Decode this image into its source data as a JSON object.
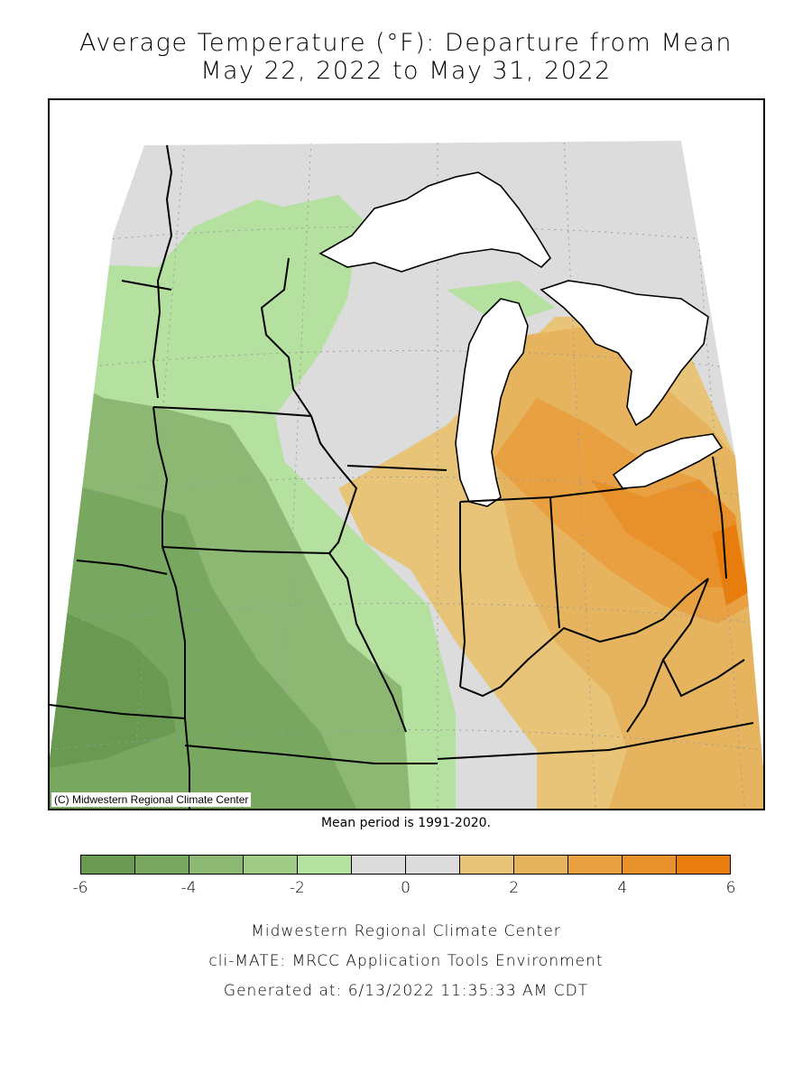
{
  "title_line1": "Average Temperature (°F): Departure from Mean",
  "title_line2": "May 22, 2022 to May 31, 2022",
  "map_credit": "(C) Midwestern Regional Climate Center",
  "mean_period": "Mean period is 1991-2020.",
  "legend": {
    "bins": [
      {
        "from": -6,
        "to": -5,
        "color": "#6a9a52"
      },
      {
        "from": -5,
        "to": -4,
        "color": "#78a860"
      },
      {
        "from": -4,
        "to": -3,
        "color": "#8cb874"
      },
      {
        "from": -3,
        "to": -2,
        "color": "#a0cc88"
      },
      {
        "from": -2,
        "to": -1,
        "color": "#b4e0a0"
      },
      {
        "from": -1,
        "to": 0,
        "color": "#dcdcdc"
      },
      {
        "from": 0,
        "to": 1,
        "color": "#dcdcdc"
      },
      {
        "from": 1,
        "to": 2,
        "color": "#e8c478"
      },
      {
        "from": 2,
        "to": 3,
        "color": "#e6b45e"
      },
      {
        "from": 3,
        "to": 4,
        "color": "#e8a040"
      },
      {
        "from": 4,
        "to": 5,
        "color": "#e8902a"
      },
      {
        "from": 5,
        "to": 6,
        "color": "#e87c0c"
      }
    ],
    "tick_labels": [
      "-6",
      "-4",
      "-2",
      "0",
      "2",
      "4",
      "6"
    ]
  },
  "footer": {
    "line1": "Midwestern Regional Climate Center",
    "line2": "cli-MATE: MRCC Application Tools Environment",
    "line3": "Generated at: 6/13/2022 11:35:33 AM CDT"
  },
  "colors": {
    "green_dark": "#6a9a52",
    "green_med": "#8cb874",
    "green_light": "#b4e0a0",
    "neutral": "#dcdcdc",
    "orange_light": "#e8c478",
    "orange_med": "#e6b45e",
    "orange_dark": "#e8902a",
    "water": "#ffffff",
    "outline": "#000000"
  }
}
